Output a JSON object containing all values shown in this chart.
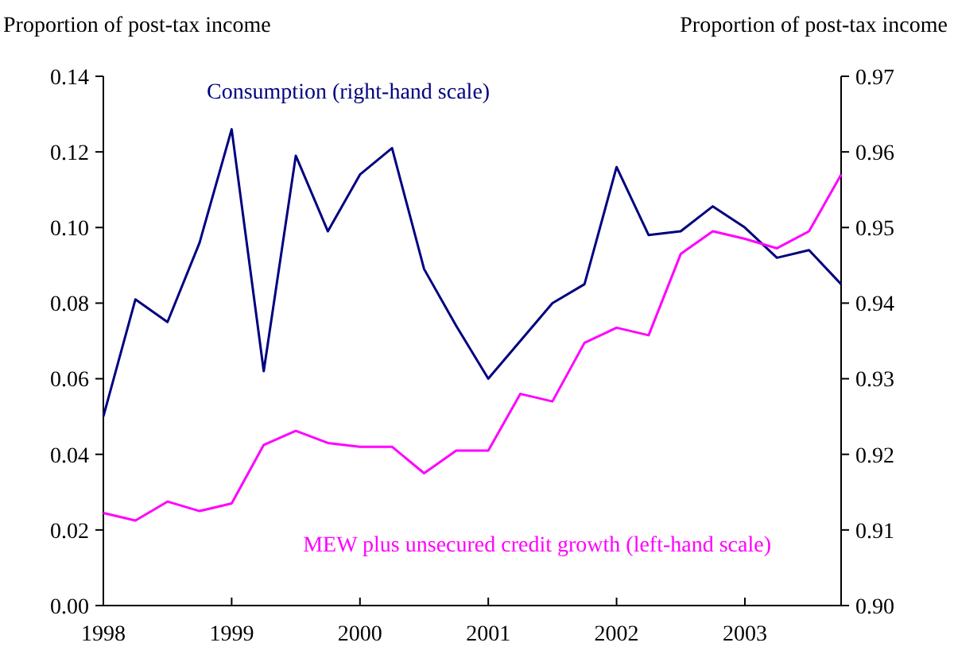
{
  "chart_data": {
    "type": "line",
    "ylabel": "Proportion of post-tax income",
    "y2label": "Proportion of post-tax income",
    "x": [
      1998,
      1998.25,
      1998.5,
      1998.75,
      1999,
      1999.25,
      1999.5,
      1999.75,
      2000,
      2000.25,
      2000.5,
      2000.75,
      2001,
      2001.25,
      2001.5,
      2001.75,
      2002,
      2002.25,
      2002.5,
      2002.75,
      2003,
      2003.25,
      2003.5,
      2003.75
    ],
    "xlim": [
      1998,
      2003.75
    ],
    "xticks": [
      1998,
      1999,
      2000,
      2001,
      2002,
      2003
    ],
    "ylim": [
      0,
      0.14
    ],
    "yticks": [
      {
        "value": 0,
        "label": "0.00"
      },
      {
        "value": 0.02,
        "label": "0.02"
      },
      {
        "value": 0.04,
        "label": "0.04"
      },
      {
        "value": 0.06,
        "label": "0.06"
      },
      {
        "value": 0.08,
        "label": "0.08"
      },
      {
        "value": 0.1,
        "label": "0.10"
      },
      {
        "value": 0.12,
        "label": "0.12"
      },
      {
        "value": 0.14,
        "label": "0.14"
      }
    ],
    "y2lim": [
      0.9,
      0.97
    ],
    "y2ticks": [
      {
        "value": 0.9,
        "label": "0.90"
      },
      {
        "value": 0.91,
        "label": "0.91"
      },
      {
        "value": 0.92,
        "label": "0.92"
      },
      {
        "value": 0.93,
        "label": "0.93"
      },
      {
        "value": 0.94,
        "label": "0.94"
      },
      {
        "value": 0.95,
        "label": "0.95"
      },
      {
        "value": 0.96,
        "label": "0.96"
      },
      {
        "value": 0.97,
        "label": "0.97"
      }
    ],
    "grid": false,
    "series": [
      {
        "name": "Consumption (right-hand scale)",
        "color": "#000080",
        "axis": "y2",
        "values": [
          0.925,
          0.9405,
          0.9375,
          0.948,
          0.963,
          0.931,
          0.9595,
          0.9495,
          0.957,
          0.9605,
          0.9445,
          0.937,
          0.93,
          0.935,
          0.94,
          0.9425,
          0.958,
          0.949,
          0.9495,
          0.9528,
          0.95,
          0.946,
          0.947,
          0.9425
        ]
      },
      {
        "name": "MEW plus unsecured credit growth (left-hand scale)",
        "color": "#ff00ff",
        "values": [
          0.0245,
          0.0225,
          0.0275,
          0.025,
          0.027,
          0.0425,
          0.0462,
          0.043,
          0.042,
          0.042,
          0.035,
          0.041,
          0.041,
          0.056,
          0.054,
          0.0695,
          0.0735,
          0.0715,
          0.093,
          0.099,
          0.097,
          0.0945,
          0.099,
          0.114
        ]
      }
    ]
  }
}
